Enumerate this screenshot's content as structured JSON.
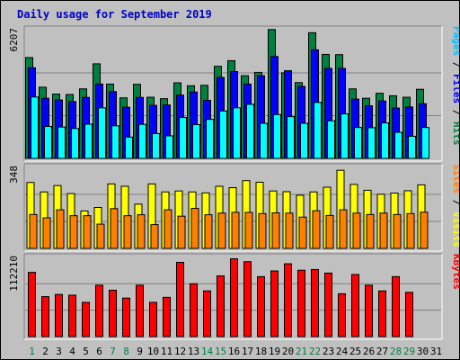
{
  "chart_data": [
    {
      "type": "bar",
      "title": "Daily usage for September 2019",
      "categories": [
        "1",
        "2",
        "3",
        "4",
        "5",
        "6",
        "7",
        "8",
        "9",
        "10",
        "11",
        "12",
        "13",
        "14",
        "15",
        "16",
        "17",
        "18",
        "19",
        "20",
        "21",
        "22",
        "23",
        "24",
        "25",
        "26",
        "27",
        "28",
        "29",
        "30",
        "31"
      ],
      "weekend_days": [
        "1",
        "7",
        "8",
        "14",
        "15",
        "21",
        "22",
        "28",
        "29"
      ],
      "ylim": [
        0,
        6207
      ],
      "y_max_label": "6207",
      "side_labels": [
        {
          "text": "Pages",
          "color": "#00c0ff"
        },
        {
          "text": "Files",
          "color": "#0000ff"
        },
        {
          "text": "Hits",
          "color": "#008040"
        }
      ],
      "series": [
        {
          "name": "Hits",
          "color": "#008040",
          "values": [
            4830,
            3410,
            3080,
            3060,
            3330,
            4530,
            3560,
            2900,
            3550,
            2930,
            2860,
            3620,
            3480,
            3500,
            4410,
            4680,
            3960,
            4120,
            6170,
            4100,
            3630,
            6020,
            4980,
            4970,
            3330,
            2880,
            3120,
            3000,
            2930,
            3310,
            0
          ]
        },
        {
          "name": "Files",
          "color": "#0000ff",
          "values": [
            4340,
            2880,
            2800,
            2720,
            2920,
            3560,
            3200,
            2450,
            2920,
            2540,
            2560,
            3030,
            3180,
            2780,
            3880,
            4160,
            3560,
            3960,
            4880,
            4200,
            3450,
            5200,
            4310,
            4310,
            2840,
            2520,
            2750,
            2410,
            2460,
            2620,
            0
          ]
        },
        {
          "name": "Pages",
          "color": "#00ffff",
          "values": [
            2940,
            1530,
            1500,
            1430,
            1640,
            2420,
            1560,
            1020,
            1630,
            1190,
            1080,
            1960,
            1620,
            1870,
            2270,
            2420,
            2590,
            1680,
            2100,
            2000,
            1680,
            2680,
            1800,
            2130,
            1480,
            1470,
            1700,
            1250,
            1060,
            1480,
            0
          ]
        }
      ]
    },
    {
      "type": "bar",
      "ylim": [
        0,
        348
      ],
      "y_max_label": "348",
      "side_labels": [
        {
          "text": "Sites",
          "color": "#ff8000"
        },
        {
          "text": "Visits",
          "color": "#ffff00"
        }
      ],
      "series": [
        {
          "name": "Visits",
          "color": "#ffff00",
          "values": [
            280,
            240,
            267,
            233,
            159,
            174,
            274,
            264,
            188,
            274,
            240,
            244,
            240,
            236,
            264,
            258,
            288,
            281,
            244,
            241,
            226,
            240,
            260,
            332,
            272,
            247,
            230,
            235,
            245,
            270,
            0
          ]
        },
        {
          "name": "Sites",
          "color": "#ff8000",
          "values": [
            144,
            130,
            164,
            139,
            139,
            103,
            169,
            139,
            143,
            101,
            164,
            137,
            170,
            143,
            150,
            153,
            153,
            148,
            151,
            150,
            133,
            160,
            140,
            164,
            150,
            144,
            150,
            144,
            148,
            154,
            0
          ]
        }
      ]
    },
    {
      "type": "bar",
      "ylim": [
        0,
        112210
      ],
      "y_max_label": "112210",
      "side_labels": [
        {
          "text": "KBytes",
          "color": "#ff0000"
        }
      ],
      "series": [
        {
          "name": "KBytes",
          "color": "#ff0000",
          "values": [
            90000,
            56000,
            59000,
            58000,
            48000,
            72000,
            65000,
            54000,
            72000,
            48000,
            55000,
            104000,
            74000,
            64000,
            85000,
            109000,
            105000,
            84000,
            92000,
            102000,
            93000,
            94000,
            89000,
            60000,
            87000,
            72000,
            64000,
            84000,
            62000,
            0,
            0
          ]
        }
      ]
    }
  ]
}
